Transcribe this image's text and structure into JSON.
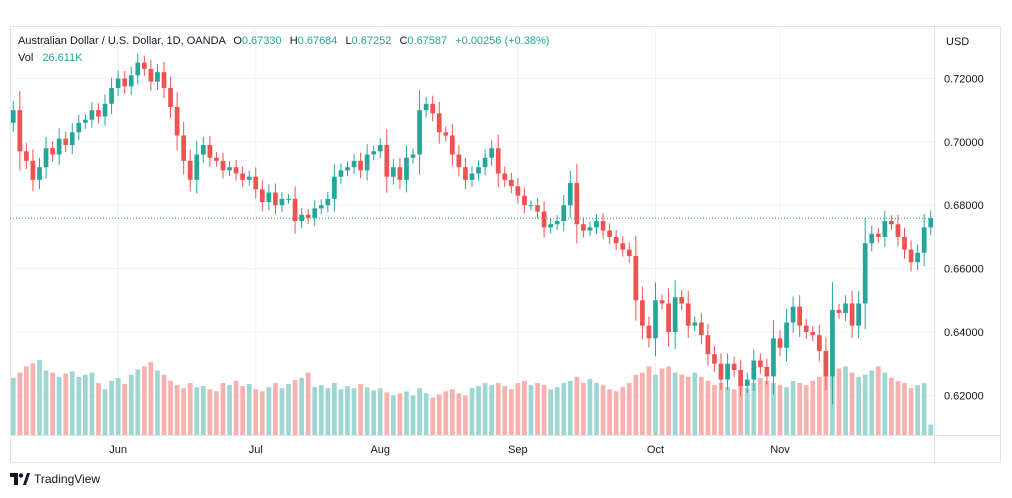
{
  "legend": {
    "symbol": "Australian Dollar / U.S. Dollar, 1D, OANDA",
    "o_label": "O",
    "o_value": "0.67330",
    "h_label": "H",
    "h_value": "0.67684",
    "l_label": "L",
    "l_value": "0.67252",
    "c_label": "C",
    "c_value": "0.67587",
    "change": "+0.00256 (+0.38%)",
    "vol_label": "Vol",
    "vol_value": "26.611K"
  },
  "footer": {
    "brand": "TradingView",
    "logo_icon": "tradingview-logo-icon"
  },
  "colors": {
    "up": "#26a69a",
    "down": "#ef5350",
    "up_volume": "#9fd6d1",
    "down_volume": "#f7b1ae",
    "grid": "#f0f3fa"
  },
  "chart_data": {
    "type": "candlestick",
    "symbol": "AUD/USD",
    "interval": "1D",
    "y_axis_label": "USD",
    "ylim": [
      0.6075,
      0.7315
    ],
    "y_ticks": [
      "0.72000",
      "0.70000",
      "0.68000",
      "0.66000",
      "0.64000",
      "0.62000"
    ],
    "x_ticks": [
      {
        "label": "Jun",
        "index": 16
      },
      {
        "label": "Jul",
        "index": 37
      },
      {
        "label": "Aug",
        "index": 56
      },
      {
        "label": "Sep",
        "index": 77
      },
      {
        "label": "Oct",
        "index": 98
      },
      {
        "label": "Nov",
        "index": 117
      }
    ],
    "last_price": 0.67587,
    "closes": [
      0.71,
      0.697,
      0.694,
      0.688,
      0.692,
      0.698,
      0.696,
      0.701,
      0.699,
      0.703,
      0.706,
      0.707,
      0.71,
      0.708,
      0.712,
      0.717,
      0.72,
      0.7175,
      0.721,
      0.725,
      0.723,
      0.719,
      0.722,
      0.717,
      0.711,
      0.702,
      0.694,
      0.688,
      0.696,
      0.699,
      0.695,
      0.694,
      0.691,
      0.692,
      0.69,
      0.688,
      0.689,
      0.685,
      0.681,
      0.684,
      0.68,
      0.682,
      0.682,
      0.675,
      0.677,
      0.676,
      0.679,
      0.68,
      0.682,
      0.689,
      0.691,
      0.692,
      0.694,
      0.691,
      0.696,
      0.697,
      0.699,
      0.689,
      0.692,
      0.688,
      0.695,
      0.696,
      0.71,
      0.712,
      0.709,
      0.703,
      0.702,
      0.696,
      0.692,
      0.688,
      0.69,
      0.692,
      0.695,
      0.698,
      0.69,
      0.688,
      0.686,
      0.683,
      0.68,
      0.68,
      0.678,
      0.673,
      0.674,
      0.675,
      0.68,
      0.687,
      0.674,
      0.672,
      0.673,
      0.675,
      0.672,
      0.67,
      0.668,
      0.666,
      0.664,
      0.65,
      0.642,
      0.638,
      0.65,
      0.649,
      0.64,
      0.651,
      0.649,
      0.642,
      0.643,
      0.639,
      0.633,
      0.63,
      0.625,
      0.63,
      0.628,
      0.623,
      0.625,
      0.631,
      0.629,
      0.626,
      0.638,
      0.635,
      0.643,
      0.648,
      0.642,
      0.64,
      0.639,
      0.634,
      0.626,
      0.647,
      0.646,
      0.649,
      0.642,
      0.649,
      0.668,
      0.671,
      0.67,
      0.675,
      0.674,
      0.67,
      0.666,
      0.662,
      0.665,
      0.673,
      0.6759
    ],
    "volumes": [
      0.55,
      0.6,
      0.66,
      0.69,
      0.72,
      0.62,
      0.6,
      0.56,
      0.59,
      0.61,
      0.56,
      0.58,
      0.6,
      0.5,
      0.44,
      0.52,
      0.55,
      0.49,
      0.58,
      0.63,
      0.66,
      0.7,
      0.62,
      0.58,
      0.52,
      0.48,
      0.45,
      0.5,
      0.46,
      0.47,
      0.44,
      0.42,
      0.5,
      0.48,
      0.52,
      0.47,
      0.49,
      0.44,
      0.42,
      0.46,
      0.5,
      0.45,
      0.49,
      0.53,
      0.55,
      0.6,
      0.46,
      0.48,
      0.45,
      0.5,
      0.44,
      0.47,
      0.45,
      0.49,
      0.46,
      0.43,
      0.45,
      0.41,
      0.38,
      0.4,
      0.42,
      0.38,
      0.45,
      0.4,
      0.36,
      0.39,
      0.42,
      0.44,
      0.4,
      0.38,
      0.45,
      0.47,
      0.5,
      0.48,
      0.5,
      0.47,
      0.44,
      0.5,
      0.52,
      0.48,
      0.5,
      0.48,
      0.44,
      0.46,
      0.5,
      0.52,
      0.56,
      0.5,
      0.54,
      0.5,
      0.48,
      0.44,
      0.42,
      0.46,
      0.5,
      0.58,
      0.6,
      0.66,
      0.58,
      0.64,
      0.66,
      0.6,
      0.58,
      0.56,
      0.6,
      0.56,
      0.52,
      0.48,
      0.5,
      0.46,
      0.44,
      0.48,
      0.45,
      0.5,
      0.55,
      0.52,
      0.5,
      0.48,
      0.46,
      0.52,
      0.5,
      0.48,
      0.52,
      0.56,
      0.6,
      0.58,
      0.64,
      0.66,
      0.6,
      0.56,
      0.58,
      0.62,
      0.66,
      0.6,
      0.55,
      0.52,
      0.5,
      0.45,
      0.48,
      0.5,
      0.1
    ]
  }
}
